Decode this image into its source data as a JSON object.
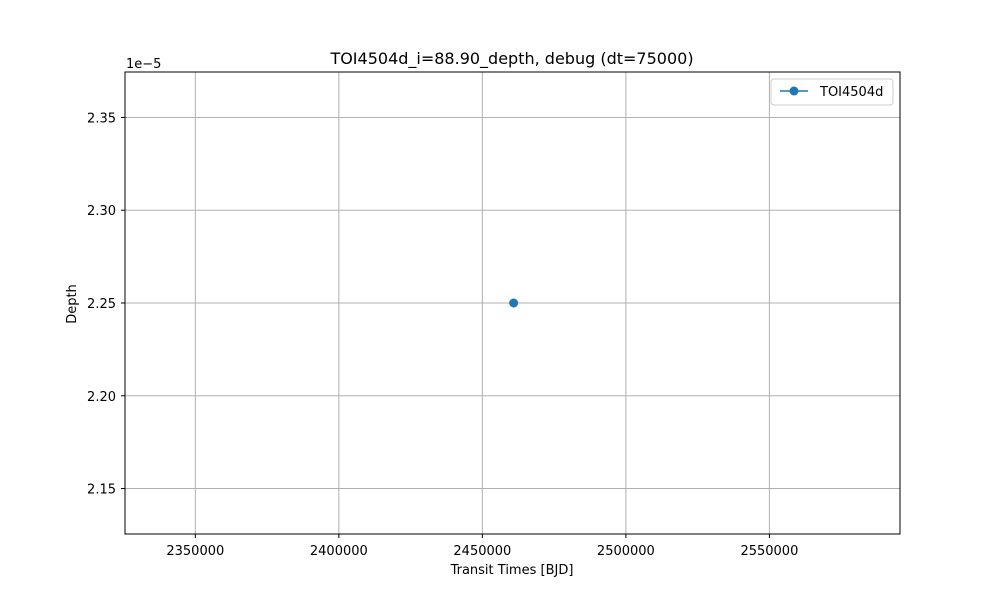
{
  "chart_data": {
    "type": "line",
    "title": "TOI4504d_i=88.90_depth, debug (dt=75000)",
    "xlabel": "Transit Times [BJD]",
    "ylabel": "Depth",
    "y_offset_label": "1e−5",
    "xlim": [
      2325500,
      2595500
    ],
    "ylim": [
      2.1255e-05,
      2.3745e-05
    ],
    "x_ticks": [
      2350000,
      2400000,
      2450000,
      2500000,
      2550000
    ],
    "x_tick_labels": [
      "2350000",
      "2400000",
      "2450000",
      "2500000",
      "2550000"
    ],
    "y_ticks": [
      2.15e-05,
      2.2e-05,
      2.25e-05,
      2.3e-05,
      2.35e-05
    ],
    "y_tick_labels": [
      "2.15",
      "2.20",
      "2.25",
      "2.30",
      "2.35"
    ],
    "grid": true,
    "legend_position": "top-right",
    "series": [
      {
        "name": "TOI4504d",
        "color": "#1f77b4",
        "marker": "circle",
        "x": [
          2460900
        ],
        "y": [
          2.25e-05
        ]
      }
    ]
  }
}
